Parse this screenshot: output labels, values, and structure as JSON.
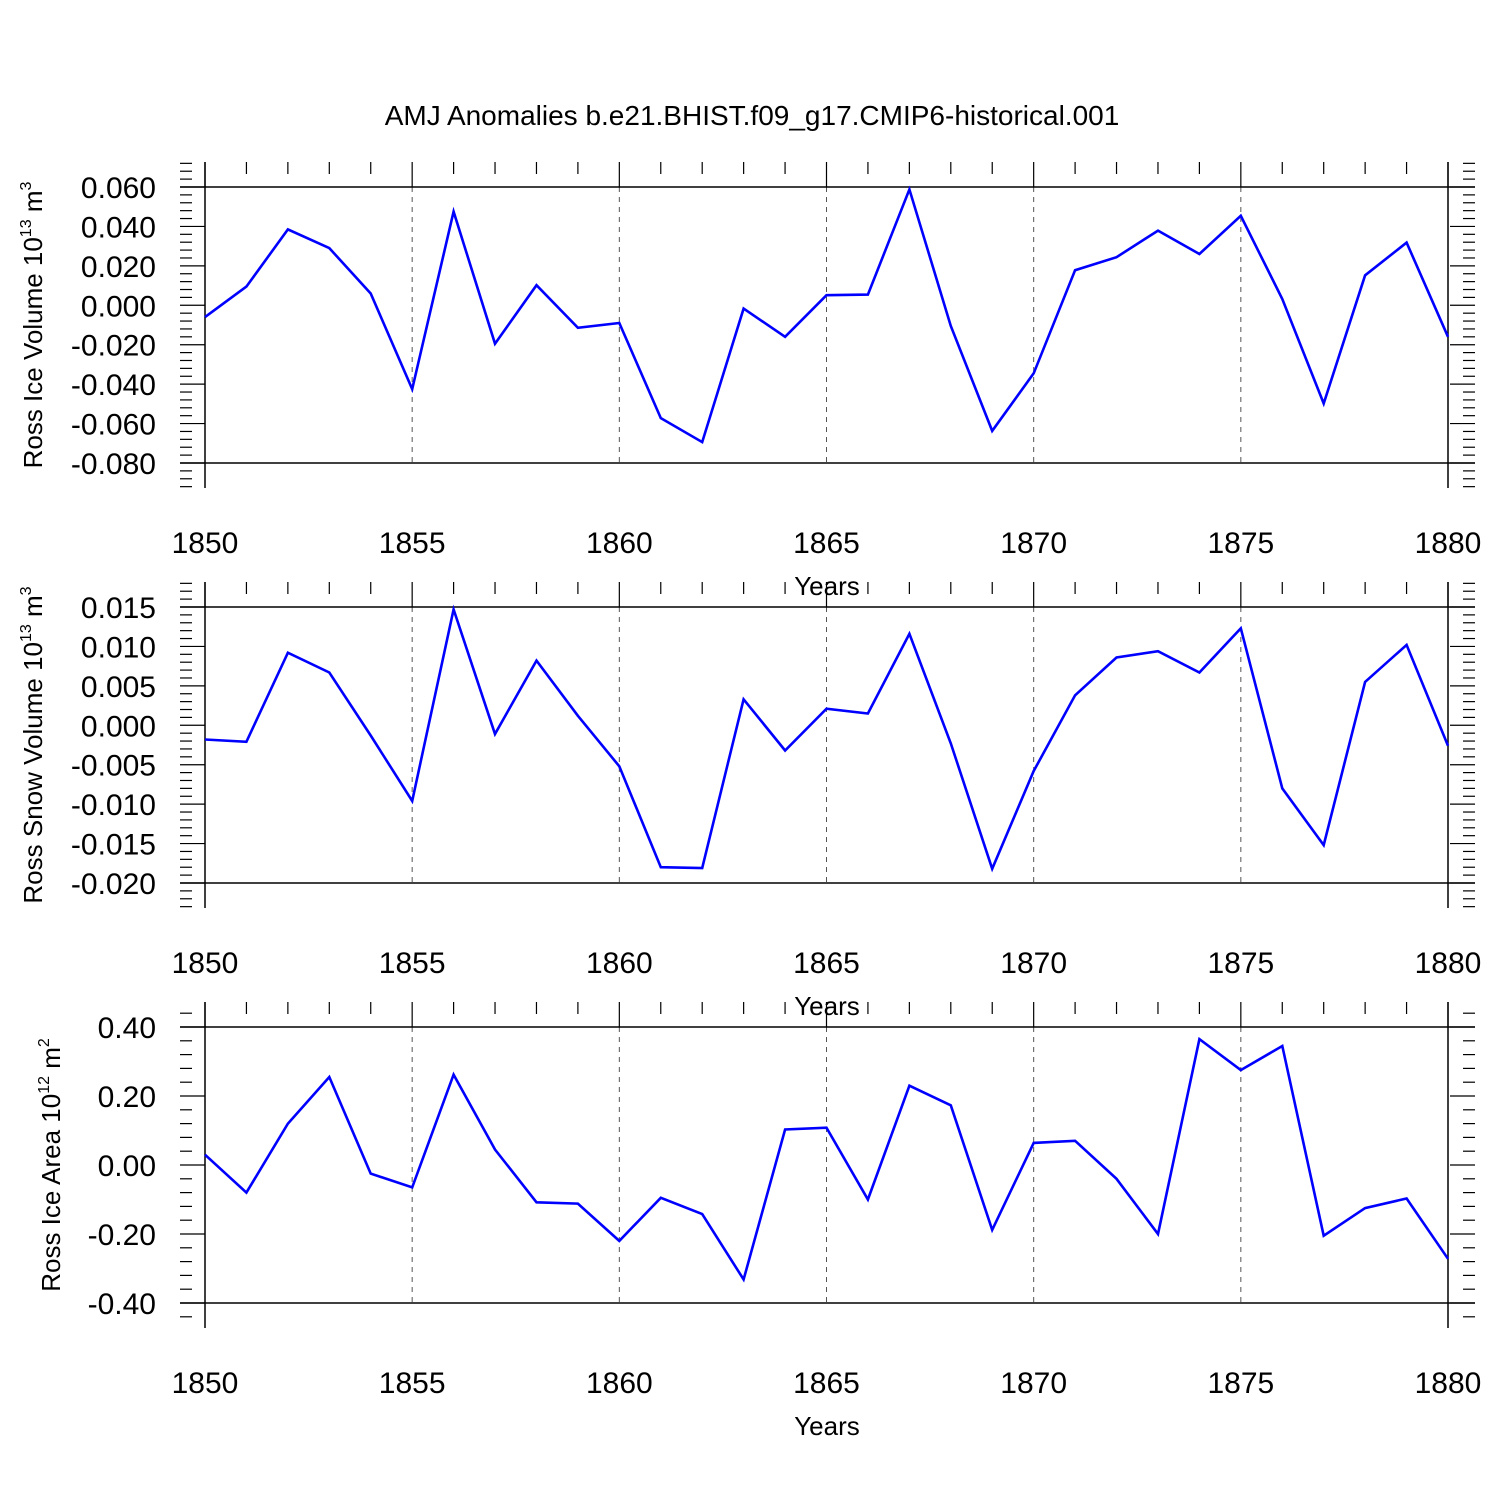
{
  "title": "AMJ Anomalies b.e21.BHIST.f09_g17.CMIP6-historical.001",
  "line_color": "#0000ff",
  "chart_data": [
    {
      "type": "line",
      "ylabel_main": "Ross Ice Volume 10",
      "ylabel_exp": "13",
      "ylabel_unit": " m",
      "ylabel_unit_exp": "3",
      "xlabel": "Years",
      "xlim": [
        1850,
        1880
      ],
      "ylim": [
        -0.08,
        0.06
      ],
      "xticks": [
        1850,
        1855,
        1860,
        1865,
        1870,
        1875,
        1880
      ],
      "xtick_labels": [
        "1850",
        "1855",
        "1860",
        "1865",
        "1870",
        "1875",
        "1880"
      ],
      "yticks": [
        -0.08,
        -0.06,
        -0.04,
        -0.02,
        0.0,
        0.02,
        0.04,
        0.06
      ],
      "ytick_labels": [
        "-0.080",
        "-0.060",
        "-0.040",
        "-0.020",
        "0.000",
        "0.020",
        "0.040",
        "0.060"
      ],
      "x": [
        1850,
        1851,
        1852,
        1853,
        1854,
        1855,
        1856,
        1857,
        1858,
        1859,
        1860,
        1861,
        1862,
        1863,
        1864,
        1865,
        1866,
        1867,
        1868,
        1869,
        1870,
        1871,
        1872,
        1873,
        1874,
        1875,
        1876,
        1877,
        1878,
        1879,
        1880
      ],
      "y": [
        -0.006,
        0.0095,
        0.0385,
        0.029,
        0.006,
        -0.0425,
        0.0475,
        -0.0195,
        0.0102,
        -0.0114,
        -0.009,
        -0.0572,
        -0.0694,
        -0.0017,
        -0.016,
        0.0051,
        0.0054,
        0.0588,
        -0.0105,
        -0.0637,
        -0.0345,
        0.0178,
        0.0244,
        0.0379,
        0.026,
        0.0454,
        0.0032,
        -0.0498,
        0.0152,
        0.0318,
        -0.016
      ]
    },
    {
      "type": "line",
      "ylabel_main": "Ross Snow Volume 10",
      "ylabel_exp": "13",
      "ylabel_unit": " m",
      "ylabel_unit_exp": "3",
      "xlabel": "Years",
      "xlim": [
        1850,
        1880
      ],
      "ylim": [
        -0.02,
        0.015
      ],
      "xticks": [
        1850,
        1855,
        1860,
        1865,
        1870,
        1875,
        1880
      ],
      "xtick_labels": [
        "1850",
        "1855",
        "1860",
        "1865",
        "1870",
        "1875",
        "1880"
      ],
      "yticks": [
        -0.02,
        -0.015,
        -0.01,
        -0.005,
        0.0,
        0.005,
        0.01,
        0.015
      ],
      "ytick_labels": [
        "-0.020",
        "-0.015",
        "-0.010",
        "-0.005",
        "0.000",
        "0.005",
        "0.010",
        "0.015"
      ],
      "x": [
        1850,
        1851,
        1852,
        1853,
        1854,
        1855,
        1856,
        1857,
        1858,
        1859,
        1860,
        1861,
        1862,
        1863,
        1864,
        1865,
        1866,
        1867,
        1868,
        1869,
        1870,
        1871,
        1872,
        1873,
        1874,
        1875,
        1876,
        1877,
        1878,
        1879,
        1880
      ],
      "y": [
        -0.0018,
        -0.0021,
        0.0092,
        0.0067,
        -0.0013,
        -0.0096,
        0.0147,
        -0.0011,
        0.0082,
        0.0012,
        -0.0052,
        -0.018,
        -0.0181,
        0.0033,
        -0.0032,
        0.0021,
        0.0015,
        0.0116,
        -0.0023,
        -0.0182,
        -0.0058,
        0.0038,
        0.0086,
        0.0094,
        0.0067,
        0.0123,
        -0.008,
        -0.0152,
        0.0055,
        0.0102,
        -0.0026
      ]
    },
    {
      "type": "line",
      "ylabel_main": "Ross Ice Area 10",
      "ylabel_exp": "12",
      "ylabel_unit": " m",
      "ylabel_unit_exp": "2",
      "xlabel": "Years",
      "xlim": [
        1850,
        1880
      ],
      "ylim": [
        -0.4,
        0.4
      ],
      "xticks": [
        1850,
        1855,
        1860,
        1865,
        1870,
        1875,
        1880
      ],
      "xtick_labels": [
        "1850",
        "1855",
        "1860",
        "1865",
        "1870",
        "1875",
        "1880"
      ],
      "yticks": [
        -0.4,
        -0.2,
        0.0,
        0.2,
        0.4
      ],
      "ytick_labels": [
        "-0.40",
        "-0.20",
        "0.00",
        "0.20",
        "0.40"
      ],
      "x": [
        1850,
        1851,
        1852,
        1853,
        1854,
        1855,
        1856,
        1857,
        1858,
        1859,
        1860,
        1861,
        1862,
        1863,
        1864,
        1865,
        1866,
        1867,
        1868,
        1869,
        1870,
        1871,
        1872,
        1873,
        1874,
        1875,
        1876,
        1877,
        1878,
        1879,
        1880
      ],
      "y": [
        0.03,
        -0.08,
        0.12,
        0.255,
        -0.025,
        -0.065,
        0.262,
        0.045,
        -0.108,
        -0.112,
        -0.22,
        -0.095,
        -0.142,
        -0.332,
        0.103,
        0.108,
        -0.1,
        0.23,
        0.173,
        -0.188,
        0.064,
        0.07,
        -0.04,
        -0.2,
        0.365,
        0.275,
        0.345,
        -0.205,
        -0.125,
        -0.097,
        -0.272
      ]
    }
  ]
}
